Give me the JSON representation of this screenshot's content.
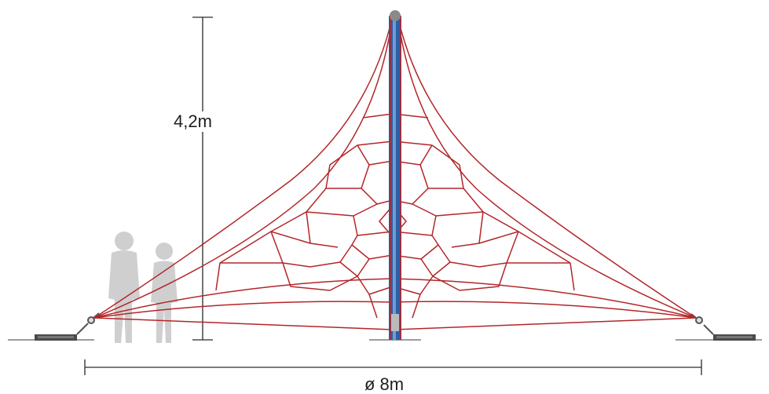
{
  "dimensions": {
    "height_label": "4,2m",
    "diameter_label": "ø 8m"
  },
  "colors": {
    "rope": "#b3262a",
    "pole_blue": "#2f5fa3",
    "pole_highlight": "#6f9bd6",
    "silhouette": "#cfcfcf",
    "dimension_line": "#2a2a2a",
    "ground_anchor": "#4a4a4a"
  },
  "icons": [
    "child-silhouette",
    "ground-anchor",
    "turnbuckle"
  ]
}
